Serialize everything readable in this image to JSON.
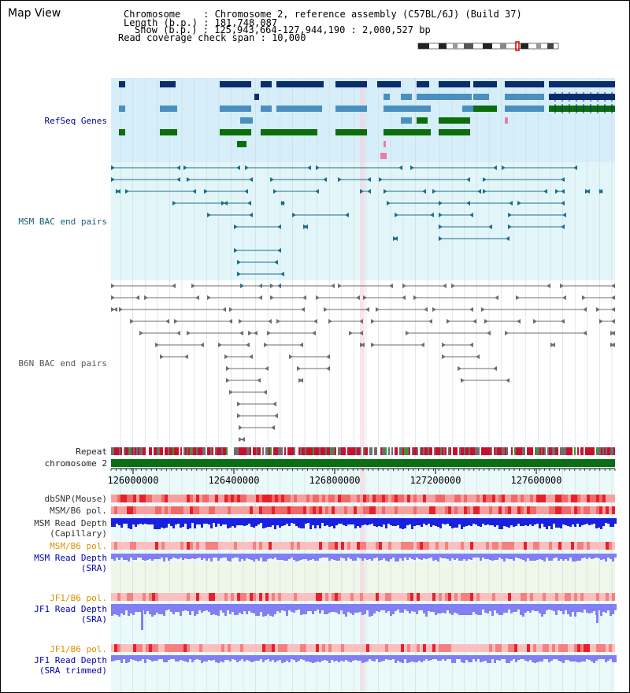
{
  "app_title": "Map View",
  "info": {
    "chromosome": "Chromosome    : Chromosome 2, reference assembly (C57BL/6J) (Build 37)",
    "length": "Length (b.p.) : 181,748,087",
    "show": "Show (b.p.) : 125,943,664-127,944,190 : 2,000,527 bp",
    "span": "Read coverage check span : 10,000"
  },
  "colors": {
    "gene_dark": "#0a2d6e",
    "gene_mid": "#4a8fbf",
    "gene_green": "#0a6e0a",
    "msm_line": "#1a6e8c",
    "b6n_line": "#6e6e6e",
    "chrom": "#0a6e14",
    "refseq_bg": "#d6eef9",
    "msm_bg": "#e2f6f9",
    "lower_bg": "#eafaf9",
    "depth_blue": "#1a20e0",
    "depth_light": "#8080f4"
  },
  "tracks": {
    "refseq": "RefSeq Genes",
    "msm_bac": "MSM BAC end pairs",
    "b6n_bac": "B6N BAC end pairs",
    "repeat": "Repeat",
    "chrom": "chromosome 2",
    "dbsnp": "dbSNP(Mouse)",
    "msm_b6_pol_1": "MSM/B6 pol.",
    "msm_read_depth_1": "MSM Read Depth",
    "msm_read_depth_1_sub": "(Capillary)",
    "msm_b6_pol_2": "MSM/B6 pol.",
    "msm_read_depth_2": "MSM Read Depth",
    "msm_read_depth_2_sub": "(SRA)",
    "jf1_b6_pol_1": "JF1/B6 pol.",
    "jf1_read_depth_1": "JF1 Read Depth",
    "jf1_read_depth_1_sub": "(SRA)",
    "jf1_b6_pol_2": "JF1/B6 pol.",
    "jf1_read_depth_2": "JF1 Read Depth",
    "jf1_read_depth_2_sub": "(SRA trimmed)"
  },
  "ruler_ticks": [
    "126000000",
    "126400000",
    "126800000",
    "127200000",
    "127600000"
  ],
  "ideogram_icon": "chromosome-ideogram-icon"
}
